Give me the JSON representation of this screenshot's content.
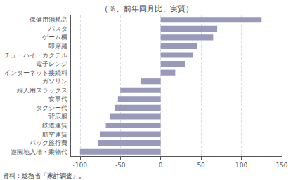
{
  "chart_data": {
    "type": "bar",
    "orientation": "horizontal",
    "title": "（％、前年同月比、実質）",
    "categories": [
      "保健用消耗品",
      "パスタ",
      "ゲーム機",
      "即席麺",
      "チューハイ・カクテル",
      "電子レンジ",
      "インターネット接続料",
      "ガソリン",
      "婦人用スラックス",
      "食事代",
      "タクシー代",
      "背広服",
      "鉄道運賃",
      "航空運賃",
      "パック旅行費",
      "遊園地入場・乗物代"
    ],
    "values": [
      125,
      70,
      65,
      45,
      40,
      30,
      18,
      -25,
      -50,
      -53,
      -57,
      -63,
      -68,
      -75,
      -78,
      -100
    ],
    "color": "#9999bb",
    "xlim": [
      -112,
      150
    ],
    "xticks": [
      -100,
      -50,
      0,
      50,
      100,
      150
    ],
    "grid": true,
    "annotations": [
      "資料：総務省「家計調査」。"
    ]
  }
}
